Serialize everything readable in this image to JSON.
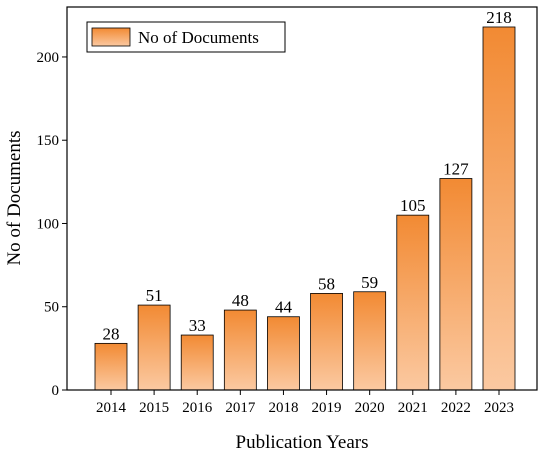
{
  "chart_data": {
    "type": "bar",
    "categories": [
      "2014",
      "2015",
      "2016",
      "2017",
      "2018",
      "2019",
      "2020",
      "2021",
      "2022",
      "2023"
    ],
    "series": [
      {
        "name": "No of Documents",
        "values": [
          28,
          51,
          33,
          48,
          44,
          58,
          59,
          105,
          127,
          218
        ]
      }
    ],
    "xlabel": "Publication Years",
    "ylabel": "No of  Documents",
    "ylim": [
      0,
      230
    ],
    "yticks": [
      0,
      50,
      100,
      150,
      200
    ],
    "grid": false,
    "legend_position": "top-left",
    "bar_gradient_top": "#f28a33",
    "bar_gradient_bottom": "#fbc9a1",
    "bar_outline": "#000000",
    "show_data_labels": true
  }
}
